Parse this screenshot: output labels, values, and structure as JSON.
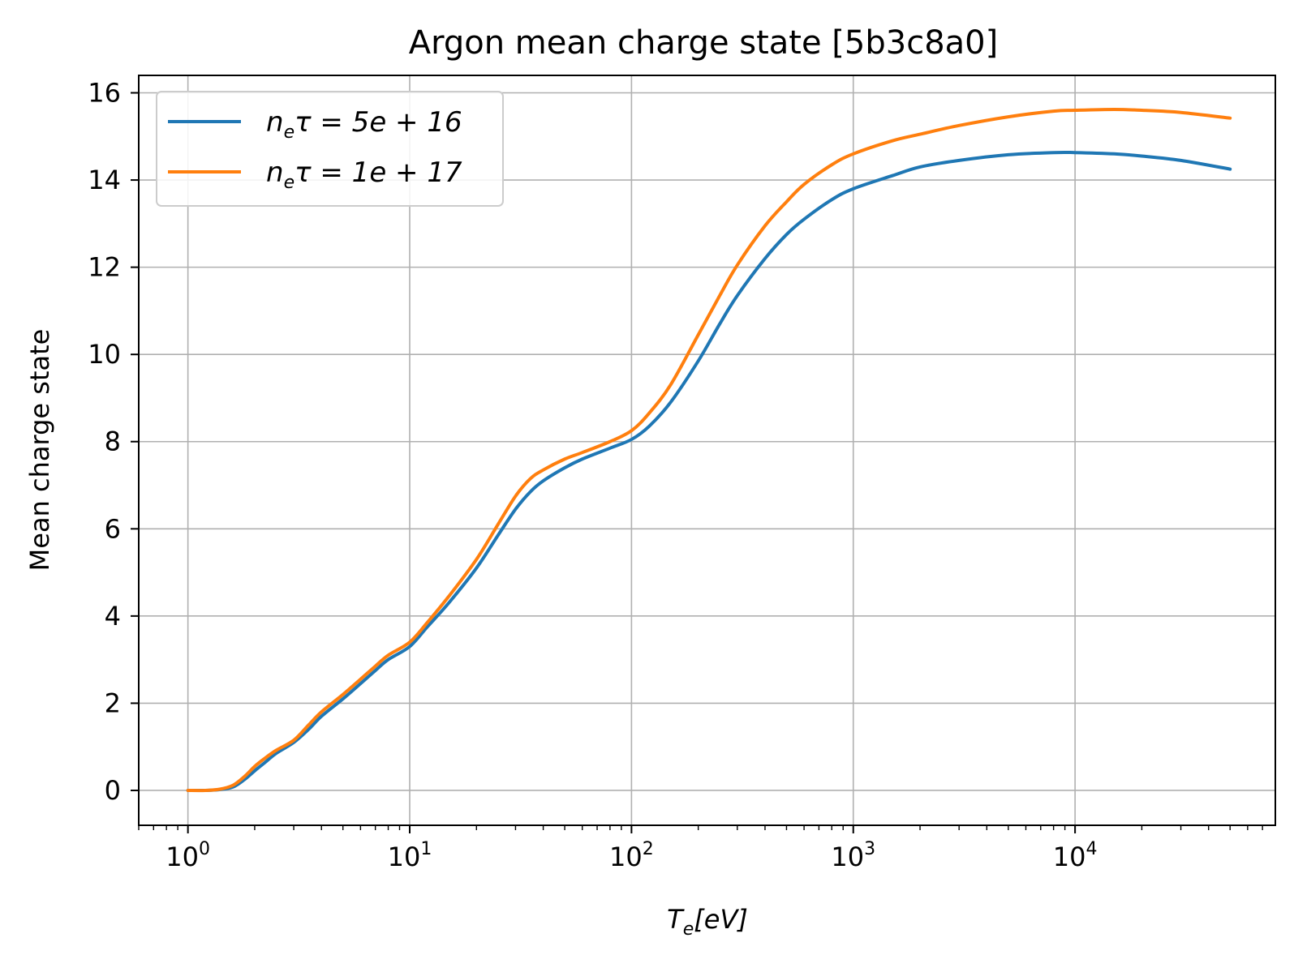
{
  "chart_data": {
    "type": "line",
    "title": "Argon mean charge state [5b3c8a0]",
    "xlabel_main": "T",
    "xlabel_sub": "e",
    "xlabel_rest": "[eV]",
    "ylabel": "Mean charge state",
    "xscale": "log",
    "xlim": [
      0.6,
      80000
    ],
    "ylim": [
      -0.8,
      16.4
    ],
    "grid": true,
    "legend_position": "top-left",
    "x_ticks": [
      {
        "base": "10",
        "exp": "0",
        "value": 1
      },
      {
        "base": "10",
        "exp": "1",
        "value": 10
      },
      {
        "base": "10",
        "exp": "2",
        "value": 100
      },
      {
        "base": "10",
        "exp": "3",
        "value": 1000
      },
      {
        "base": "10",
        "exp": "4",
        "value": 10000
      }
    ],
    "y_ticks": [
      "0",
      "2",
      "4",
      "6",
      "8",
      "10",
      "12",
      "14",
      "16"
    ],
    "series": [
      {
        "legend_main": "n",
        "legend_sub": "e",
        "legend_rest": "τ = 5e + 16",
        "color": "#1f77b4",
        "x": [
          1.0,
          1.2,
          1.4,
          1.6,
          1.8,
          2.0,
          2.2,
          2.5,
          3.0,
          3.5,
          4.0,
          5.0,
          6.0,
          7.0,
          8.0,
          10,
          12,
          15,
          20,
          25,
          30,
          35,
          40,
          50,
          60,
          80,
          100,
          120,
          150,
          200,
          250,
          300,
          400,
          500,
          600,
          800,
          1000,
          1500,
          2000,
          3000,
          5000,
          8000,
          10000,
          15000,
          20000,
          30000,
          50000
        ],
        "y": [
          0.0,
          0.0,
          0.02,
          0.08,
          0.25,
          0.45,
          0.62,
          0.85,
          1.1,
          1.4,
          1.7,
          2.1,
          2.45,
          2.75,
          3.0,
          3.3,
          3.75,
          4.3,
          5.1,
          5.85,
          6.45,
          6.85,
          7.1,
          7.4,
          7.6,
          7.85,
          8.05,
          8.35,
          8.9,
          9.85,
          10.7,
          11.35,
          12.2,
          12.75,
          13.1,
          13.55,
          13.8,
          14.1,
          14.3,
          14.45,
          14.58,
          14.63,
          14.63,
          14.6,
          14.55,
          14.45,
          14.25
        ]
      },
      {
        "legend_main": "n",
        "legend_sub": "e",
        "legend_rest": "τ = 1e + 17",
        "color": "#ff7f0e",
        "x": [
          1.0,
          1.2,
          1.4,
          1.6,
          1.8,
          2.0,
          2.2,
          2.5,
          3.0,
          3.5,
          4.0,
          5.0,
          6.0,
          7.0,
          8.0,
          10,
          12,
          15,
          20,
          25,
          30,
          35,
          40,
          50,
          60,
          80,
          100,
          120,
          150,
          200,
          250,
          300,
          400,
          500,
          600,
          800,
          1000,
          1500,
          2000,
          3000,
          5000,
          8000,
          10000,
          15000,
          20000,
          30000,
          50000
        ],
        "y": [
          0.0,
          0.0,
          0.03,
          0.12,
          0.32,
          0.55,
          0.72,
          0.92,
          1.15,
          1.5,
          1.8,
          2.2,
          2.55,
          2.85,
          3.1,
          3.4,
          3.85,
          4.45,
          5.3,
          6.1,
          6.75,
          7.15,
          7.35,
          7.6,
          7.75,
          8.0,
          8.25,
          8.65,
          9.3,
          10.45,
          11.35,
          12.05,
          12.95,
          13.5,
          13.9,
          14.35,
          14.6,
          14.9,
          15.05,
          15.25,
          15.45,
          15.58,
          15.6,
          15.62,
          15.6,
          15.55,
          15.42
        ]
      }
    ]
  }
}
